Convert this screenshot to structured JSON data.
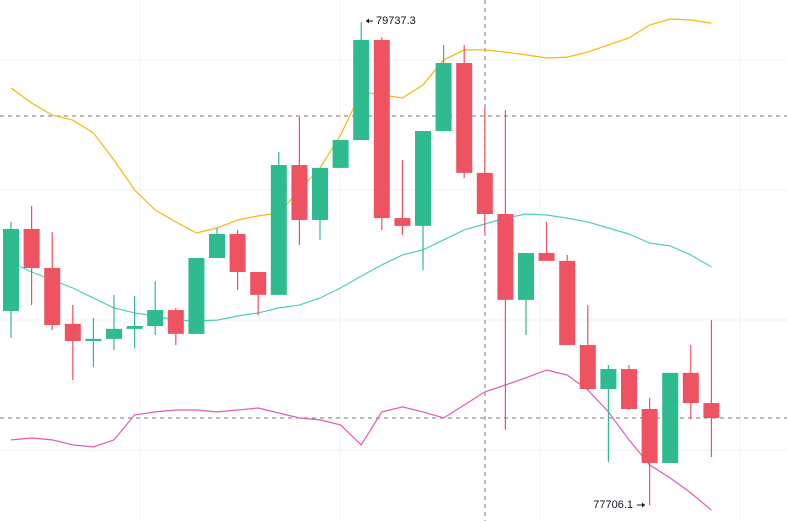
{
  "chart_data": {
    "type": "candlestick",
    "ylim": [
      77639,
      79830
    ],
    "up_color": "#2dbb8f",
    "down_color": "#ef5361",
    "candles": {
      "open": [
        78522,
        78867,
        78703,
        78468,
        78396,
        78405,
        78447,
        78459,
        78526,
        78426,
        78745,
        78846,
        78686,
        78590,
        79136,
        78905,
        79124,
        79241,
        79662,
        78913,
        78880,
        79279,
        79565,
        79103,
        78930,
        78569,
        78766,
        78733,
        78379,
        78194,
        78278,
        78110,
        77883,
        78262,
        78135
      ],
      "high": [
        78897,
        78964,
        78854,
        78547,
        78493,
        78590,
        78585,
        78648,
        78535,
        78745,
        78871,
        78863,
        78686,
        79191,
        79338,
        79124,
        79241,
        79737.3,
        79674,
        79157,
        79279,
        79641,
        79641,
        79376,
        79367,
        78766,
        78897,
        78758,
        78547,
        78295,
        78295,
        78156,
        78262,
        78379,
        78484
      ],
      "low": [
        78409,
        78547,
        78442,
        78232,
        78287,
        78358,
        78367,
        78421,
        78379,
        78426,
        78745,
        78611,
        78505,
        78590,
        78800,
        78821,
        79124,
        79241,
        78863,
        78842,
        78695,
        79279,
        79081,
        78850,
        78022,
        78421,
        78733,
        78379,
        78190,
        77887,
        78106,
        77706.1,
        77883,
        78068,
        77908
      ],
      "close": [
        78867,
        78703,
        78463,
        78396,
        78405,
        78447,
        78459,
        78526,
        78426,
        78745,
        78846,
        78686,
        78590,
        79136,
        78905,
        79124,
        79241,
        79662,
        78913,
        78880,
        79279,
        79565,
        79103,
        78930,
        78569,
        78766,
        78733,
        78379,
        78194,
        78278,
        78110,
        77883,
        78262,
        78135,
        78072
      ]
    },
    "lines": [
      {
        "color": "#f5b90a",
        "values": [
          79460,
          79397,
          79346,
          79325,
          79271,
          79157,
          79031,
          78947,
          78897,
          78850,
          78871,
          78905,
          78922,
          78934,
          79031,
          79124,
          79262,
          79443,
          79431,
          79418,
          79473,
          79578,
          79620,
          79620,
          79611,
          79599,
          79586,
          79590,
          79611,
          79641,
          79670,
          79725,
          79750,
          79746,
          79733
        ]
      },
      {
        "color": "#4dd0b8",
        "values": [
          78728,
          78686,
          78653,
          78619,
          78577,
          78535,
          78514,
          78501,
          78484,
          78480,
          78484,
          78501,
          78514,
          78535,
          78547,
          78577,
          78619,
          78669,
          78716,
          78758,
          78779,
          78821,
          78863,
          78888,
          78913,
          78930,
          78926,
          78913,
          78897,
          78871,
          78846,
          78808,
          78796,
          78758,
          78707
        ]
      },
      {
        "color": "#e05cb5",
        "values": [
          77980,
          77988,
          77980,
          77959,
          77950,
          77980,
          78085,
          78098,
          78106,
          78106,
          78098,
          78106,
          78114,
          78093,
          78072,
          78064,
          78043,
          77959,
          78098,
          78119,
          78098,
          78072,
          78127,
          78182,
          78211,
          78241,
          78274,
          78253,
          78190,
          78098,
          77980,
          77875,
          77820,
          77757,
          77685
        ]
      }
    ],
    "annotations": [
      {
        "text": "79737.3"
      },
      {
        "text": "77706.1"
      }
    ]
  }
}
